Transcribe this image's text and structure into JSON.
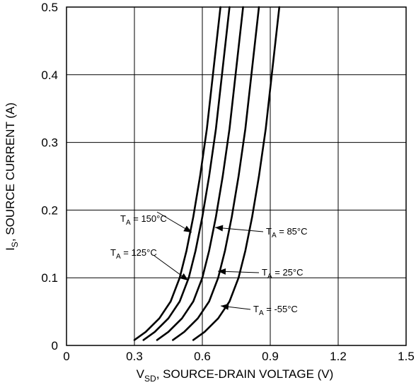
{
  "chart_data": {
    "type": "line",
    "xlabel": {
      "main": "V",
      "sub": "SD",
      "rest": ", SOURCE-DRAIN VOLTAGE (V)"
    },
    "ylabel": {
      "main": "I",
      "sub": "S",
      "rest": ", SOURCE CURRENT (A)"
    },
    "xlim": [
      0,
      1.5
    ],
    "ylim": [
      0,
      0.5
    ],
    "xticks": [
      0,
      0.3,
      0.6,
      0.9,
      1.2,
      1.5
    ],
    "yticks": [
      0,
      0.1,
      0.2,
      0.3,
      0.4,
      0.5
    ],
    "xtick_labels": [
      "0",
      "0.3",
      "0.6",
      "0.9",
      "1.2",
      "1.5"
    ],
    "ytick_labels": [
      "0",
      "0.1",
      "0.2",
      "0.3",
      "0.4",
      "0.5"
    ],
    "grid": true,
    "series": [
      {
        "name": "150°C",
        "label": {
          "main": "T",
          "sub": "A",
          "rest": " = 150°C"
        },
        "x": [
          0.3,
          0.35,
          0.41,
          0.46,
          0.5,
          0.53,
          0.56,
          0.59,
          0.62,
          0.65,
          0.68
        ],
        "y": [
          0.008,
          0.02,
          0.04,
          0.065,
          0.1,
          0.14,
          0.19,
          0.25,
          0.32,
          0.41,
          0.5
        ]
      },
      {
        "name": "125°C",
        "label": {
          "main": "T",
          "sub": "A",
          "rest": " = 125°C"
        },
        "x": [
          0.34,
          0.39,
          0.45,
          0.5,
          0.54,
          0.57,
          0.6,
          0.63,
          0.66,
          0.69,
          0.72
        ],
        "y": [
          0.008,
          0.02,
          0.04,
          0.065,
          0.1,
          0.14,
          0.19,
          0.25,
          0.32,
          0.41,
          0.5
        ]
      },
      {
        "name": "85°C",
        "label": {
          "main": "T",
          "sub": "A",
          "rest": " = 85°C"
        },
        "x": [
          0.4,
          0.45,
          0.51,
          0.56,
          0.6,
          0.63,
          0.66,
          0.69,
          0.72,
          0.75,
          0.78
        ],
        "y": [
          0.008,
          0.02,
          0.04,
          0.065,
          0.1,
          0.14,
          0.19,
          0.25,
          0.32,
          0.41,
          0.5
        ]
      },
      {
        "name": "25°C",
        "label": {
          "main": "T",
          "sub": "A",
          "rest": " = 25°C"
        },
        "x": [
          0.47,
          0.52,
          0.58,
          0.63,
          0.67,
          0.7,
          0.73,
          0.76,
          0.79,
          0.82,
          0.85
        ],
        "y": [
          0.008,
          0.02,
          0.04,
          0.065,
          0.1,
          0.14,
          0.19,
          0.25,
          0.32,
          0.41,
          0.5
        ]
      },
      {
        "name": "-55°C",
        "label": {
          "main": "T",
          "sub": "A",
          "rest": " = -55°C"
        },
        "x": [
          0.56,
          0.61,
          0.67,
          0.72,
          0.76,
          0.79,
          0.82,
          0.85,
          0.88,
          0.91,
          0.94
        ],
        "y": [
          0.008,
          0.02,
          0.04,
          0.065,
          0.1,
          0.14,
          0.19,
          0.25,
          0.32,
          0.41,
          0.5
        ]
      }
    ]
  }
}
